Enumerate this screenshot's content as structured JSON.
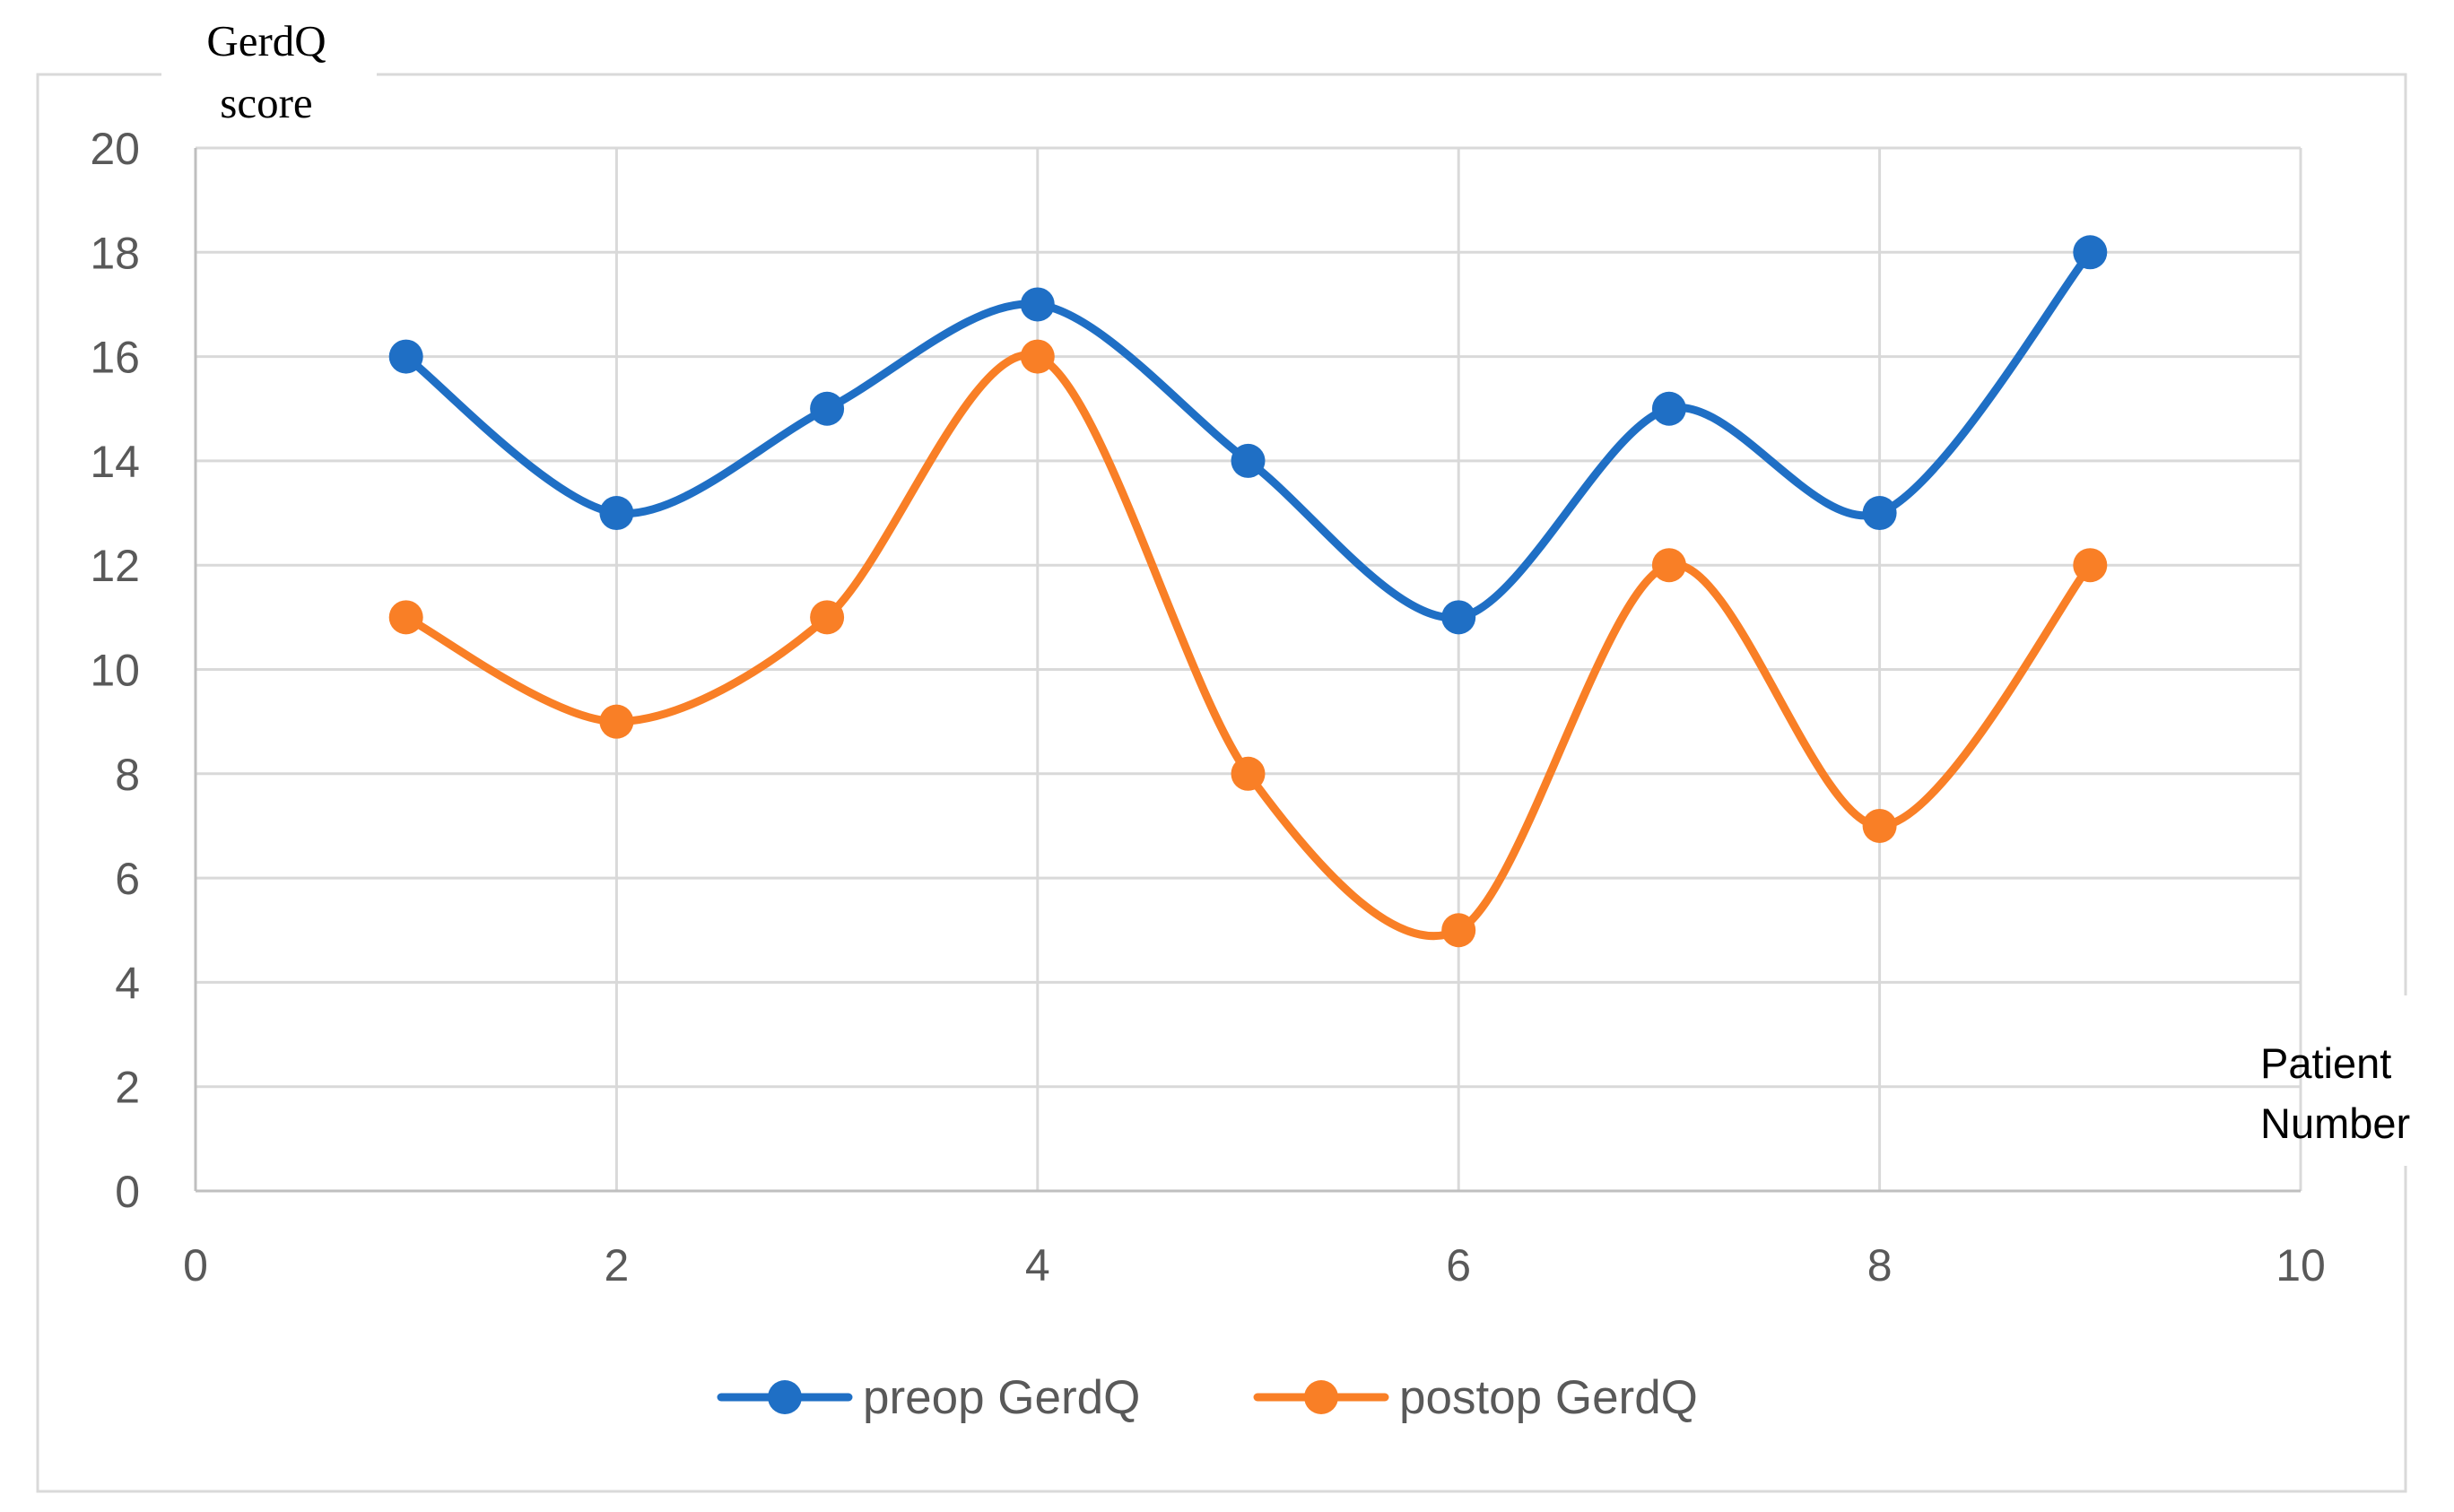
{
  "chart_data": {
    "type": "line",
    "smooth": true,
    "title": "",
    "ylabel": [
      "GerdQ",
      "score"
    ],
    "xlabel": [
      "Patient",
      "Number"
    ],
    "xlim": [
      0,
      10
    ],
    "ylim": [
      0,
      20
    ],
    "xticks": [
      0,
      2,
      4,
      6,
      8,
      10
    ],
    "yticks": [
      0,
      2,
      4,
      6,
      8,
      10,
      12,
      14,
      16,
      18,
      20
    ],
    "grid": true,
    "legend_position": "bottom",
    "x": [
      1,
      2,
      3,
      4,
      5,
      6,
      7,
      8,
      9
    ],
    "series": [
      {
        "name": "preop GerdQ",
        "color": "#1f6fc5",
        "values": [
          16,
          13,
          15,
          17,
          14,
          11,
          15,
          13,
          18
        ]
      },
      {
        "name": "postop GerdQ",
        "color": "#f97f26",
        "values": [
          11,
          9,
          11,
          16,
          8,
          5,
          12,
          7,
          12
        ]
      }
    ]
  }
}
